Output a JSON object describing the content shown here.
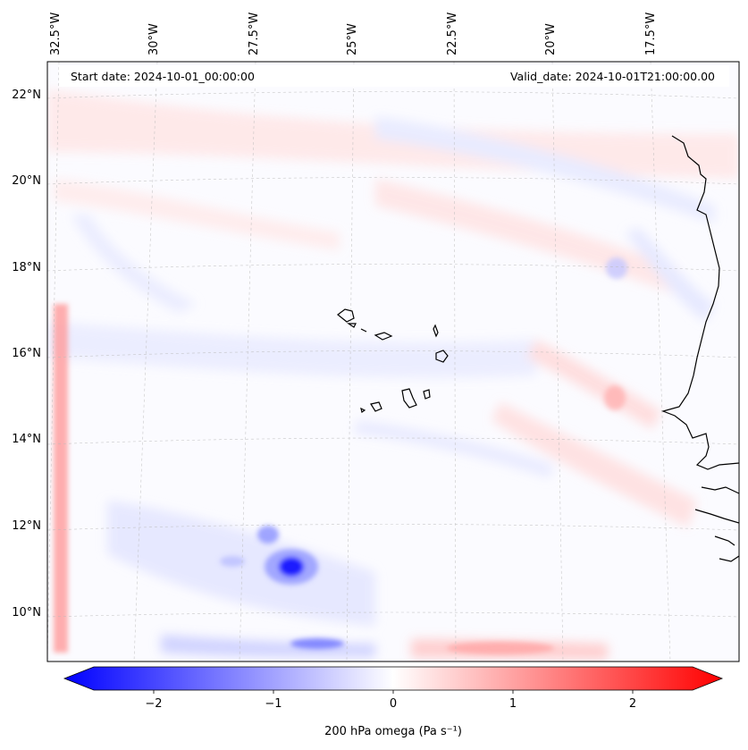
{
  "header": {
    "start_date": "Start date: 2024-10-01_00:00:00",
    "valid_date": "Valid_date: 2024-10-01T21:00:00.00"
  },
  "map": {
    "projection": "lambert-conic",
    "lat_range": [
      9,
      22.5
    ],
    "lon_range": [
      -33,
      -16.5
    ],
    "lat_ticks": [
      "10°N",
      "12°N",
      "14°N",
      "16°N",
      "18°N",
      "20°N",
      "22°N"
    ],
    "lon_ticks": [
      "32.5°W",
      "30°W",
      "27.5°W",
      "25°W",
      "22.5°W",
      "20°W",
      "17.5°W"
    ],
    "gridlines": true,
    "coastline_color": "#000000"
  },
  "colorbar": {
    "label": "200 hPa omega (Pa s⁻¹)",
    "ticks": [
      "−2",
      "−1",
      "0",
      "1",
      "2"
    ],
    "range": [
      -2.5,
      2.5
    ],
    "extend": "both",
    "colormap": "bwr",
    "colors": {
      "negative": "#0000ff",
      "zero": "#ffffff",
      "positive": "#ff0000"
    }
  }
}
